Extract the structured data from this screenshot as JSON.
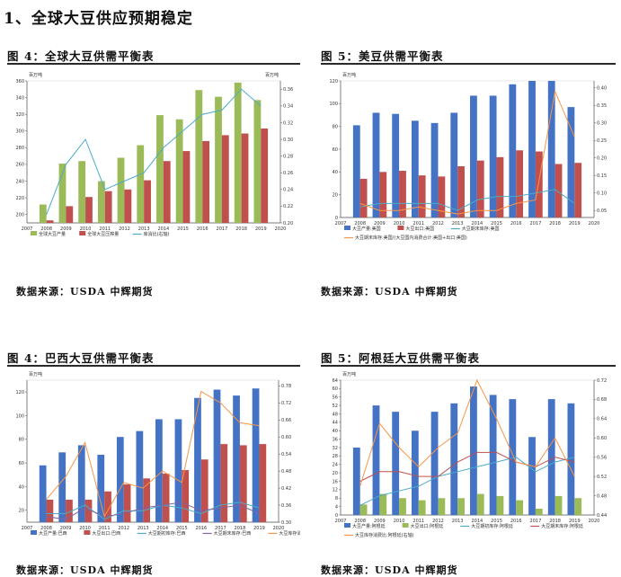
{
  "page": {
    "section_title": "1、全球大豆供应预期稳定",
    "colors": {
      "blue": "#4472C4",
      "green": "#9BBB59",
      "red": "#C0504D",
      "cyan": "#4BACC6",
      "orange": "#F79646",
      "purple": "#8064A2"
    }
  },
  "figures": [
    {
      "title": "图 4：全球大豆供需平衡表",
      "source": "数据来源：USDA  中辉期货"
    },
    {
      "title": "图 5：美豆供需平衡表",
      "source": "数据来源：USDA  中辉期货"
    },
    {
      "title": "图 4：巴西大豆供需平衡表",
      "source": "数据来源：USDA  中辉期货"
    },
    {
      "title": "图 5：阿根廷大豆供需平衡表",
      "source": "数据来源：USDA  中辉期货"
    }
  ],
  "chart_data": [
    {
      "type": "bar",
      "left_unit": "百万吨",
      "right_unit": "百万吨",
      "categories": [
        "2007",
        "2008",
        "2009",
        "2010",
        "2011",
        "2012",
        "2013",
        "2014",
        "2015",
        "2016",
        "2017",
        "2018",
        "2019",
        "2020"
      ],
      "ylim": [
        190,
        360
      ],
      "yticks": [
        200,
        220,
        240,
        260,
        280,
        300,
        320,
        340,
        360
      ],
      "y2lim": [
        0.2,
        0.37
      ],
      "y2ticks": [
        0.2,
        0.22,
        0.24,
        0.26,
        0.28,
        0.3,
        0.32,
        0.34,
        0.36
      ],
      "y2decimals": 2,
      "bar_series": [
        {
          "name": "全球大豆产量",
          "color": "#9BBB59",
          "values": [
            null,
            212,
            261,
            264,
            240,
            268,
            283,
            319,
            314,
            349,
            341,
            358,
            337,
            null
          ]
        },
        {
          "name": "全球大豆压榨量",
          "color": "#C0504D",
          "values": [
            null,
            193,
            210,
            221,
            228,
            230,
            241,
            264,
            276,
            288,
            295,
            297,
            303,
            null
          ]
        }
      ],
      "line_series": [
        {
          "name": "库消比(右轴)",
          "color": "#4BACC6",
          "values": [
            null,
            0.21,
            0.27,
            0.3,
            0.24,
            0.25,
            0.26,
            0.29,
            0.31,
            0.33,
            0.335,
            0.36,
            0.34,
            null
          ]
        }
      ],
      "legend_rows": [
        [
          0,
          1,
          "L0"
        ]
      ],
      "grid": false,
      "legend": "bottom"
    },
    {
      "type": "bar",
      "left_unit": "百万吨",
      "right_unit": "",
      "categories": [
        "2007",
        "2008",
        "2009",
        "2010",
        "2011",
        "2012",
        "2013",
        "2014",
        "2015",
        "2016",
        "2017",
        "2018",
        "2019",
        "2020"
      ],
      "ylim": [
        0,
        120
      ],
      "yticks": [
        0,
        20,
        40,
        60,
        80,
        100,
        120
      ],
      "y2lim": [
        0.03,
        0.42
      ],
      "y2ticks": [
        0.05,
        0.1,
        0.15,
        0.2,
        0.25,
        0.3,
        0.35,
        0.4
      ],
      "y2decimals": 2,
      "bar_series": [
        {
          "name": "大豆产量:美国",
          "color": "#4472C4",
          "values": [
            null,
            81,
            92,
            91,
            85,
            83,
            92,
            107,
            107,
            117,
            121,
            121,
            97,
            null
          ]
        },
        {
          "name": "大豆出口:美国",
          "color": "#C0504D",
          "values": [
            null,
            34,
            40,
            41,
            37,
            36,
            45,
            50,
            53,
            59,
            58,
            47,
            48,
            null
          ]
        }
      ],
      "line_series": [
        {
          "name": "大豆期末库存:美国",
          "color": "#4BACC6",
          "values": [
            null,
            0.06,
            0.07,
            0.07,
            0.07,
            0.07,
            0.05,
            0.08,
            0.09,
            0.09,
            0.1,
            0.11,
            0.07,
            null
          ]
        },
        {
          "name": "大豆期末库存:美国/(大豆国内消费合计:美国+出口:美国)",
          "color": "#F79646",
          "values": [
            null,
            0.07,
            0.05,
            0.05,
            0.06,
            0.05,
            0.04,
            0.05,
            0.05,
            0.07,
            0.08,
            0.39,
            0.26,
            null
          ]
        }
      ],
      "legend_rows": [
        [
          0,
          1,
          "L0"
        ],
        [
          "L1"
        ]
      ],
      "grid": false,
      "legend": "bottom"
    },
    {
      "type": "bar",
      "left_unit": "百万吨",
      "right_unit": "",
      "categories": [
        "2007",
        "2008",
        "2009",
        "2010",
        "2011",
        "2012",
        "2013",
        "2014",
        "2015",
        "2016",
        "2017",
        "2018",
        "2019",
        "2020"
      ],
      "ylim": [
        10,
        130
      ],
      "yticks": [
        20,
        40,
        60,
        80,
        100,
        120
      ],
      "y2lim": [
        0.3,
        0.8
      ],
      "y2ticks": [
        0.3,
        0.36,
        0.42,
        0.48,
        0.54,
        0.6,
        0.66,
        0.72,
        0.78
      ],
      "y2decimals": 2,
      "bar_series": [
        {
          "name": "大豆产量:巴西",
          "color": "#4472C4",
          "values": [
            null,
            58,
            69,
            75,
            67,
            82,
            87,
            97,
            97,
            115,
            122,
            117,
            123,
            null
          ]
        },
        {
          "name": "大豆出口:巴西",
          "color": "#C0504D",
          "values": [
            null,
            29,
            29,
            29,
            36,
            42,
            47,
            51,
            54,
            63,
            76,
            75,
            76,
            null
          ]
        }
      ],
      "line_series": [
        {
          "name": "大豆期初库存:巴西",
          "color": "#4BACC6",
          "values": [
            null,
            0.33,
            0.33,
            0.36,
            0.31,
            0.34,
            0.34,
            0.36,
            0.35,
            0.33,
            0.36,
            0.37,
            0.35,
            null
          ]
        },
        {
          "name": "大豆期末库存:巴西",
          "color": "#8064A2",
          "values": [
            null,
            0.32,
            0.31,
            0.35,
            0.32,
            0.33,
            0.35,
            0.36,
            0.37,
            0.34,
            0.35,
            0.36,
            0.33,
            null
          ]
        },
        {
          "name": "大豆库存消费比:巴西(右轴)",
          "color": "#F79646",
          "values": [
            null,
            0.38,
            0.46,
            0.58,
            0.32,
            0.44,
            0.42,
            0.48,
            0.44,
            0.76,
            0.72,
            0.65,
            0.64,
            null
          ]
        }
      ],
      "legend_rows": [
        [
          0,
          1,
          "L0",
          "L1",
          "L2"
        ]
      ],
      "grid": false,
      "legend": "bottom"
    },
    {
      "type": "bar",
      "left_unit": "百万吨",
      "right_unit": "",
      "categories": [
        "2007",
        "2008",
        "2009",
        "2010",
        "2011",
        "2012",
        "2013",
        "2014",
        "2015",
        "2016",
        "2017",
        "2018",
        "2019",
        "2020"
      ],
      "ylim": [
        0,
        64
      ],
      "yticks": [
        0,
        4,
        8,
        12,
        16,
        20,
        24,
        28,
        32,
        36,
        40,
        44,
        48,
        52,
        56,
        60,
        64
      ],
      "y2lim": [
        0.44,
        0.72
      ],
      "y2ticks": [
        0.44,
        0.48,
        0.52,
        0.56,
        0.6,
        0.64,
        0.68,
        0.72
      ],
      "y2decimals": 2,
      "bar_series": [
        {
          "name": "大豆产量:阿根廷",
          "color": "#4472C4",
          "values": [
            null,
            32,
            52,
            49,
            40,
            49,
            53,
            61,
            57,
            55,
            37,
            55,
            53,
            null
          ]
        },
        {
          "name": "大豆出口:阿根廷",
          "color": "#9BBB59",
          "values": [
            null,
            5,
            10,
            8,
            7,
            8,
            8,
            10,
            9,
            7,
            3,
            9,
            8,
            null
          ]
        }
      ],
      "line_series": [
        {
          "name": "大豆期初库存:阿根廷",
          "color": "#4BACC6",
          "values": [
            null,
            0.46,
            0.48,
            0.49,
            0.5,
            0.52,
            0.53,
            0.54,
            0.55,
            0.56,
            0.53,
            0.55,
            0.56,
            null
          ]
        },
        {
          "name": "大豆期末库存:阿根廷",
          "color": "#C0504D",
          "values": [
            null,
            0.51,
            0.53,
            0.53,
            0.52,
            0.52,
            0.55,
            0.57,
            0.57,
            0.55,
            0.54,
            0.56,
            0.55,
            null
          ]
        },
        {
          "name": "大豆库存消费比:阿根廷(右轴)",
          "color": "#F79646",
          "values": [
            null,
            0.5,
            0.63,
            0.58,
            0.54,
            0.58,
            0.61,
            0.72,
            0.64,
            0.55,
            0.54,
            0.6,
            0.52,
            null
          ]
        }
      ],
      "legend_rows": [
        [
          0,
          1,
          "L0",
          "L1"
        ],
        [
          "L2"
        ]
      ],
      "grid": false,
      "legend": "bottom"
    }
  ]
}
